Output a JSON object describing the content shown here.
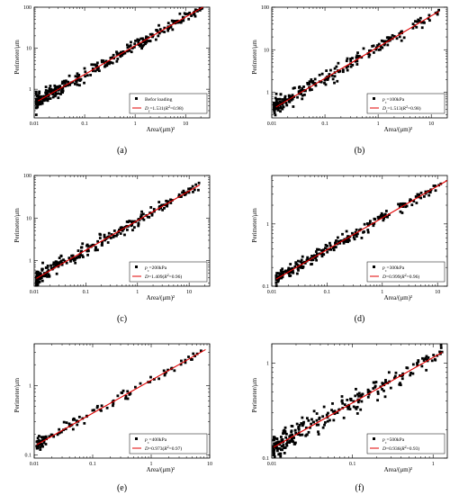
{
  "chart_data": [
    {
      "type": "scatter",
      "panel_label": "(a)",
      "xlabel": "Area/(μm)²",
      "ylabel": "Perimeter/μm",
      "xscale": "log",
      "yscale": "log",
      "xlim": [
        0.01,
        30
      ],
      "ylim": [
        0.2,
        100
      ],
      "xticks": [
        0.01,
        0.1,
        1,
        10
      ],
      "xtick_labels": [
        "0.01",
        "0.1",
        "1",
        "10"
      ],
      "yticks": [
        1,
        10,
        100
      ],
      "ytick_labels": [
        "1",
        "10",
        "100"
      ],
      "legend_position": "bottom-right",
      "series": [
        {
          "name": "Befor loading",
          "marker": "square",
          "color": "#000000",
          "x_range": [
            0.011,
            22
          ],
          "points": 320,
          "y_spread_log10": 0.09
        },
        {
          "name": "D_f=1.531(R²=0.98)",
          "kind": "fit_line",
          "color": "#e00000",
          "x": [
            0.012,
            22
          ],
          "y": [
            0.52,
            100
          ],
          "legend_parts": [
            {
              "t": "D",
              "i": true
            },
            {
              "t": "f",
              "sub": true
            },
            {
              "t": "=1.531("
            },
            {
              "t": "R",
              "i": true
            },
            {
              "t": "2",
              "sup": true
            },
            {
              "t": "=0.98)"
            }
          ]
        }
      ]
    },
    {
      "type": "scatter",
      "panel_label": "(b)",
      "xlabel": "Area/(μm)²",
      "ylabel": "Perimeter/μm",
      "xscale": "log",
      "yscale": "log",
      "xlim": [
        0.01,
        20
      ],
      "ylim": [
        0.25,
        100
      ],
      "xticks": [
        0.01,
        0.1,
        1,
        10
      ],
      "xtick_labels": [
        "0.01",
        "0.1",
        "1",
        "10"
      ],
      "yticks": [
        1,
        10,
        100
      ],
      "ytick_labels": [
        "1",
        "10",
        "100"
      ],
      "legend_position": "bottom-right",
      "series": [
        {
          "name": "p_c=100kPa",
          "marker": "square",
          "color": "#000000",
          "x_range": [
            0.011,
            14
          ],
          "points": 240,
          "y_spread_log10": 0.1,
          "legend_parts": [
            {
              "t": "p",
              "i": true
            },
            {
              "t": "c",
              "sub": true
            },
            {
              "t": "=100kPa"
            }
          ]
        },
        {
          "name": "D_f=1.513(R²=0.98)",
          "kind": "fit_line",
          "color": "#e00000",
          "x": [
            0.012,
            14
          ],
          "y": [
            0.45,
            80
          ],
          "legend_parts": [
            {
              "t": "D",
              "i": true
            },
            {
              "t": "f",
              "sub": true
            },
            {
              "t": "=1.513("
            },
            {
              "t": "R",
              "i": true
            },
            {
              "t": "2",
              "sup": true
            },
            {
              "t": "=0.98)"
            }
          ]
        }
      ]
    },
    {
      "type": "scatter",
      "panel_label": "(c)",
      "xlabel": "Area/(μm)²",
      "ylabel": "Perimeter/μm",
      "xscale": "log",
      "yscale": "log",
      "xlim": [
        0.01,
        25
      ],
      "ylim": [
        0.25,
        100
      ],
      "xticks": [
        0.01,
        0.1,
        1,
        10
      ],
      "xtick_labels": [
        "0.01",
        "0.1",
        "1",
        "10"
      ],
      "yticks": [
        1,
        10,
        100
      ],
      "ytick_labels": [
        "1",
        "10",
        "100"
      ],
      "legend_position": "bottom-right",
      "series": [
        {
          "name": "p_c=200kPa",
          "marker": "square",
          "color": "#000000",
          "x_range": [
            0.011,
            16
          ],
          "points": 260,
          "y_spread_log10": 0.09,
          "legend_parts": [
            {
              "t": "p",
              "i": true
            },
            {
              "t": "c",
              "sub": true
            },
            {
              "t": "=200kPa"
            }
          ]
        },
        {
          "name": "D=1.409(R²=0.96)",
          "kind": "fit_line",
          "color": "#e00000",
          "x": [
            0.011,
            16
          ],
          "y": [
            0.38,
            60
          ],
          "legend_parts": [
            {
              "t": "D",
              "i": true
            },
            {
              "t": "=1.409("
            },
            {
              "t": "R",
              "i": true
            },
            {
              "t": "2",
              "sup": true
            },
            {
              "t": "=0.96)"
            }
          ]
        }
      ]
    },
    {
      "type": "scatter",
      "panel_label": "(d)",
      "xlabel": "Area/(μm)²",
      "ylabel": "Perimeter/μm",
      "xscale": "log",
      "yscale": "log",
      "xlim": [
        0.01,
        15
      ],
      "ylim": [
        0.1,
        6
      ],
      "xticks": [
        0.01,
        0.1,
        1,
        10
      ],
      "xtick_labels": [
        "0.01",
        "0.1",
        "1",
        "10"
      ],
      "yticks": [
        0.1,
        1
      ],
      "ytick_labels": [
        "0.1",
        "1"
      ],
      "legend_position": "bottom-right",
      "series": [
        {
          "name": "p_c=300kPa",
          "marker": "square",
          "color": "#000000",
          "x_range": [
            0.012,
            12
          ],
          "points": 240,
          "y_spread_log10": 0.06,
          "legend_parts": [
            {
              "t": "p",
              "i": true
            },
            {
              "t": "c",
              "sub": true
            },
            {
              "t": "=300kPa"
            }
          ]
        },
        {
          "name": "D=0.999(R²=0.96)",
          "kind": "fit_line",
          "color": "#e00000",
          "x": [
            0.012,
            15
          ],
          "y": [
            0.13,
            5.0
          ],
          "legend_parts": [
            {
              "t": "D",
              "i": true
            },
            {
              "t": "=0.999("
            },
            {
              "t": "R",
              "i": true
            },
            {
              "t": "2",
              "sup": true
            },
            {
              "t": "=0.96)"
            }
          ]
        }
      ]
    },
    {
      "type": "scatter",
      "panel_label": "(e)",
      "xlabel": "Area/(μm)²",
      "ylabel": "Perimeter/μm",
      "xscale": "log",
      "yscale": "log",
      "xlim": [
        0.01,
        10
      ],
      "ylim": [
        0.09,
        4
      ],
      "xticks": [
        0.01,
        0.1,
        1,
        10
      ],
      "xtick_labels": [
        "0.01",
        "0.1",
        "1",
        "10"
      ],
      "yticks": [
        0.1,
        1
      ],
      "ytick_labels": [
        "0.1",
        "1"
      ],
      "legend_position": "bottom-right",
      "series": [
        {
          "name": "p_c=400kPa",
          "marker": "square",
          "color": "#000000",
          "x_range": [
            0.011,
            8.5
          ],
          "points": 110,
          "y_spread_log10": 0.05,
          "legend_parts": [
            {
              "t": "p",
              "i": true
            },
            {
              "t": "c",
              "sub": true
            },
            {
              "t": "=400kPa"
            }
          ]
        },
        {
          "name": "D=0.973(R²=0.97)",
          "kind": "fit_line",
          "color": "#e00000",
          "x": [
            0.011,
            8.5
          ],
          "y": [
            0.14,
            3.3
          ],
          "legend_parts": [
            {
              "t": "D",
              "i": true
            },
            {
              "t": "=0.973("
            },
            {
              "t": "R",
              "i": true
            },
            {
              "t": "2",
              "sup": true
            },
            {
              "t": "=0.97)"
            }
          ]
        }
      ]
    },
    {
      "type": "scatter",
      "panel_label": "(f)",
      "xlabel": "Area/(μm)²",
      "ylabel": "Perimeter/μm",
      "xscale": "log",
      "yscale": "log",
      "xlim": [
        0.01,
        1.5
      ],
      "ylim": [
        0.1,
        1.6
      ],
      "xticks": [
        0.01,
        0.1,
        1
      ],
      "xtick_labels": [
        "0.01",
        "0.1",
        "1"
      ],
      "yticks": [
        0.1,
        1
      ],
      "ytick_labels": [
        "0.1",
        "1"
      ],
      "legend_position": "bottom-right",
      "series": [
        {
          "name": "p_c=500kPa",
          "marker": "square",
          "color": "#000000",
          "x_range": [
            0.0105,
            1.3
          ],
          "points": 260,
          "y_spread_log10": 0.07,
          "legend_parts": [
            {
              "t": "p",
              "i": true
            },
            {
              "t": "c",
              "sub": true
            },
            {
              "t": "=500kPa"
            }
          ]
        },
        {
          "name": "D=0.936(R²=0.93)",
          "kind": "fit_line",
          "color": "#e00000",
          "x": [
            0.0105,
            1.3
          ],
          "y": [
            0.13,
            1.3
          ],
          "legend_parts": [
            {
              "t": "D",
              "i": true
            },
            {
              "t": "=0.936("
            },
            {
              "t": "R",
              "i": true
            },
            {
              "t": "2",
              "sup": true
            },
            {
              "t": "=0.93)"
            }
          ]
        }
      ]
    }
  ]
}
